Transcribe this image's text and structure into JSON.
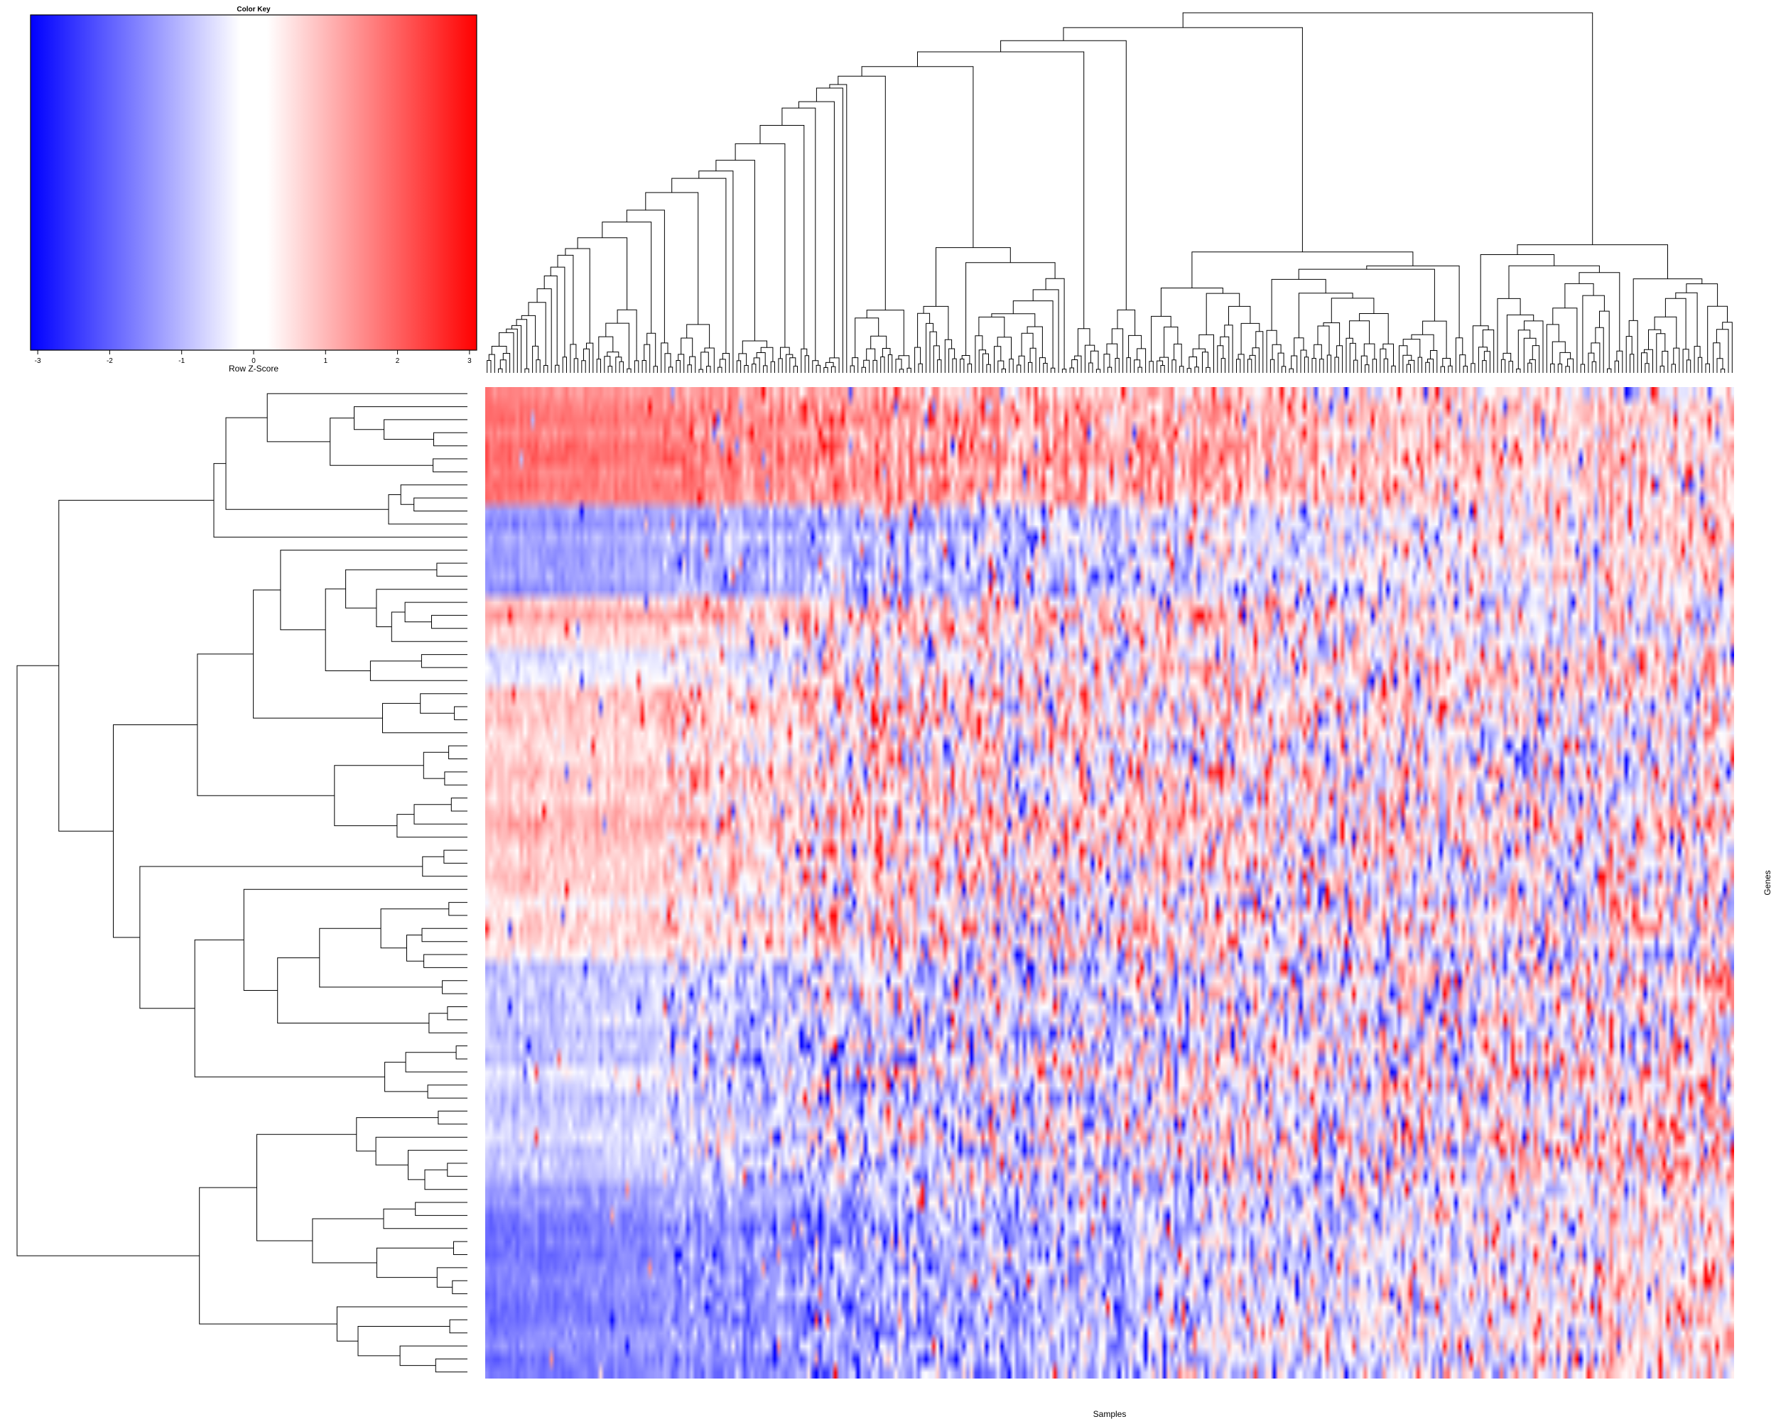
{
  "chart_data": {
    "type": "heatmap",
    "xlabel": "Samples",
    "ylabel": "Genes",
    "n_rows": 76,
    "n_cols": 330,
    "color_key": {
      "title": "Color Key",
      "label": "Row Z-Score",
      "ticks": [
        -3,
        -2,
        -1,
        0,
        1,
        2,
        3
      ],
      "range": [
        -3.1,
        3.1
      ],
      "low_color": "#0000ff",
      "mid_color": "#ffffff",
      "high_color": "#ff0000"
    },
    "row_dendrogram": true,
    "column_dendrogram": true,
    "row_block_means": [
      {
        "rows": 9,
        "mean": 0.9,
        "noise": 0.55,
        "slope": -1.4
      },
      {
        "rows": 7,
        "mean": -0.4,
        "noise": 0.6,
        "slope": 1.6
      },
      {
        "rows": 4,
        "mean": 0.35,
        "noise": 0.8,
        "slope": -0.9
      },
      {
        "rows": 3,
        "mean": 0.0,
        "noise": 0.8,
        "slope": 0.9
      },
      {
        "rows": 16,
        "mean": 0.3,
        "noise": 0.95,
        "slope": -0.7
      },
      {
        "rows": 5,
        "mean": 0.15,
        "noise": 1.0,
        "slope": -0.5
      },
      {
        "rows": 7,
        "mean": -0.2,
        "noise": 1.0,
        "slope": 0.8
      },
      {
        "rows": 10,
        "mean": -0.25,
        "noise": 1.0,
        "slope": 0.9
      },
      {
        "rows": 2,
        "mean": -0.5,
        "noise": 0.7,
        "slope": 1.5
      },
      {
        "rows": 13,
        "mean": -0.6,
        "noise": 0.7,
        "slope": 1.9
      }
    ]
  }
}
